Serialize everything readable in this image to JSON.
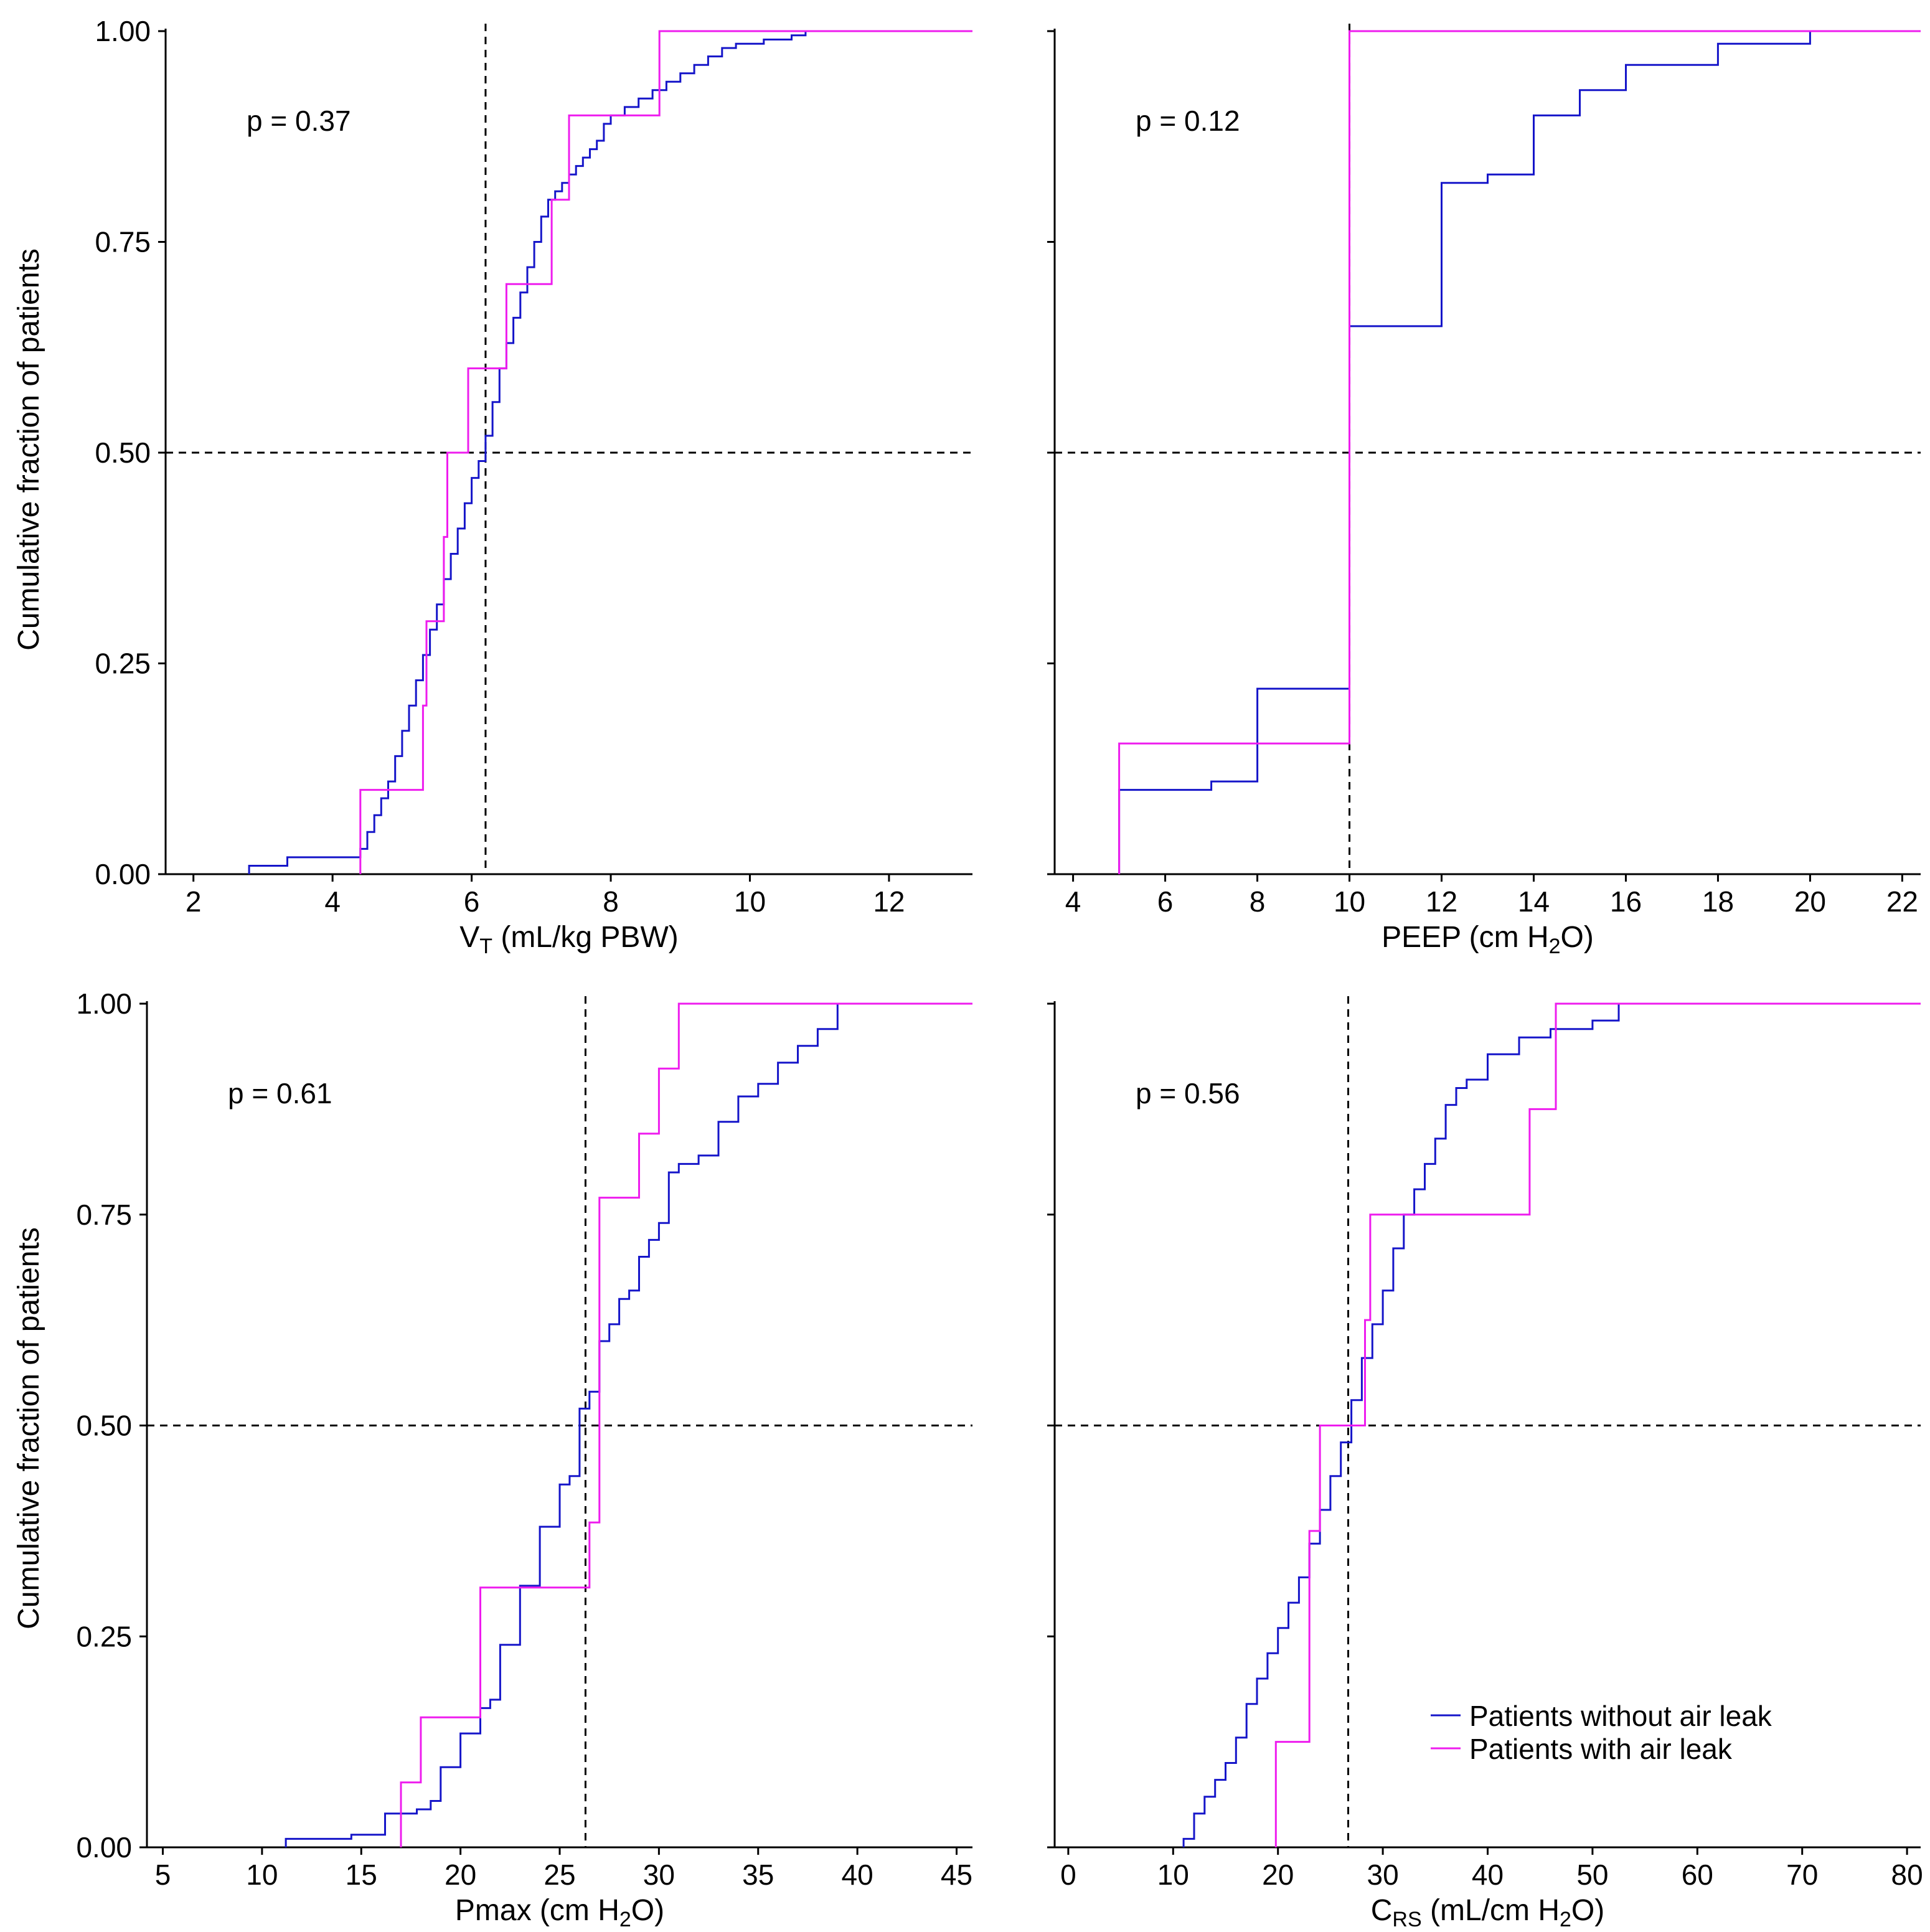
{
  "figure": {
    "legend": [
      {
        "name": "Patients without air leak",
        "color": "#1515c9"
      },
      {
        "name": "Patients with air leak",
        "color": "#ee1cee"
      }
    ],
    "ylabel": "Cumulative fraction of patients"
  },
  "chart_data": [
    {
      "type": "line",
      "step": true,
      "title": "",
      "xlabel_main": "V",
      "xlabel_sub": "T",
      "xlabel_rest": " (mL/kg PBW)",
      "ylabel": "Cumulative fraction of patients",
      "xlim": [
        1.6,
        13.2
      ],
      "ylim": [
        0,
        1
      ],
      "xticks": [
        2,
        4,
        6,
        8,
        10,
        12
      ],
      "yticks": [
        "0.00",
        "0.25",
        "0.50",
        "0.75",
        "1.00"
      ],
      "annotation": "p = 0.37",
      "ref_x": 6.2,
      "ref_y": 0.5,
      "series": [
        {
          "name": "Patients without air leak",
          "x": [
            2.8,
            3.35,
            4.4,
            4.5,
            4.6,
            4.7,
            4.8,
            4.9,
            5.0,
            5.1,
            5.2,
            5.3,
            5.4,
            5.5,
            5.6,
            5.7,
            5.8,
            5.9,
            6.0,
            6.1,
            6.2,
            6.3,
            6.4,
            6.5,
            6.6,
            6.7,
            6.8,
            6.9,
            7.0,
            7.1,
            7.2,
            7.3,
            7.4,
            7.5,
            7.6,
            7.7,
            7.8,
            7.9,
            8.0,
            8.2,
            8.4,
            8.6,
            8.8,
            9.0,
            9.2,
            9.4,
            9.6,
            9.8,
            10.2,
            10.6,
            10.8
          ],
          "y": [
            0.01,
            0.02,
            0.03,
            0.05,
            0.07,
            0.09,
            0.11,
            0.14,
            0.17,
            0.2,
            0.23,
            0.26,
            0.29,
            0.32,
            0.35,
            0.38,
            0.41,
            0.44,
            0.47,
            0.49,
            0.52,
            0.56,
            0.6,
            0.63,
            0.66,
            0.69,
            0.72,
            0.75,
            0.78,
            0.8,
            0.81,
            0.82,
            0.83,
            0.84,
            0.85,
            0.86,
            0.87,
            0.89,
            0.9,
            0.91,
            0.92,
            0.93,
            0.94,
            0.95,
            0.96,
            0.97,
            0.98,
            0.985,
            0.99,
            0.995,
            1.0
          ]
        },
        {
          "name": "Patients with air leak",
          "x": [
            4.4,
            5.3,
            5.35,
            5.6,
            5.65,
            5.95,
            6.5,
            7.15,
            7.4,
            7.8,
            8.7
          ],
          "y": [
            0.1,
            0.2,
            0.3,
            0.4,
            0.5,
            0.6,
            0.7,
            0.8,
            0.9,
            0.9,
            1.0
          ]
        }
      ]
    },
    {
      "type": "line",
      "step": true,
      "title": "",
      "xlabel_main": "PEEP (cm H",
      "xlabel_sub": "2",
      "xlabel_rest": "O)",
      "ylabel": "",
      "xlim": [
        3.6,
        22.4
      ],
      "ylim": [
        0,
        1
      ],
      "xticks": [
        4,
        6,
        8,
        10,
        12,
        14,
        16,
        18,
        20,
        22
      ],
      "yticks": [],
      "annotation": "p = 0.12",
      "ref_x": 10,
      "ref_y": 0.5,
      "series": [
        {
          "name": "Patients without air leak",
          "x": [
            5,
            7,
            8,
            10,
            12,
            13,
            14,
            15,
            16,
            18,
            20
          ],
          "y": [
            0.1,
            0.11,
            0.22,
            0.65,
            0.82,
            0.83,
            0.9,
            0.93,
            0.96,
            0.985,
            1.0
          ]
        },
        {
          "name": "Patients with air leak",
          "x": [
            5,
            10
          ],
          "y": [
            0.155,
            1.0
          ]
        }
      ]
    },
    {
      "type": "line",
      "step": true,
      "title": "",
      "xlabel_main": "Pmax (cm H",
      "xlabel_sub": "2",
      "xlabel_rest": "O)",
      "ylabel": "Cumulative fraction of patients",
      "xlim": [
        4.2,
        45.8
      ],
      "ylim": [
        0,
        1
      ],
      "xticks": [
        5,
        10,
        15,
        20,
        25,
        30,
        35,
        40,
        45
      ],
      "yticks": [
        "0.00",
        "0.25",
        "0.50",
        "0.75",
        "1.00"
      ],
      "annotation": "p = 0.61",
      "ref_x": 26.3,
      "ref_y": 0.5,
      "series": [
        {
          "name": "Patients without air leak",
          "x": [
            11.2,
            14.5,
            16.2,
            17.8,
            18.5,
            19.0,
            20.0,
            21.0,
            21.5,
            22.0,
            23.0,
            24.0,
            25.0,
            25.5,
            26.0,
            26.5,
            27.0,
            27.5,
            28.0,
            28.5,
            29.0,
            29.5,
            30.0,
            30.5,
            31.0,
            32.0,
            33.0,
            34.0,
            35.0,
            36.0,
            37.0,
            38.0,
            39.0
          ],
          "y": [
            0.01,
            0.015,
            0.04,
            0.045,
            0.055,
            0.095,
            0.135,
            0.165,
            0.175,
            0.24,
            0.31,
            0.38,
            0.43,
            0.44,
            0.52,
            0.54,
            0.6,
            0.62,
            0.65,
            0.66,
            0.7,
            0.72,
            0.74,
            0.8,
            0.81,
            0.82,
            0.86,
            0.89,
            0.905,
            0.93,
            0.95,
            0.97,
            1.0
          ]
        },
        {
          "name": "Patients with air leak",
          "x": [
            17.0,
            18.0,
            21.0,
            26.5,
            27.0,
            29.0,
            30.0,
            31.0
          ],
          "y": [
            0.077,
            0.154,
            0.308,
            0.385,
            0.77,
            0.846,
            0.923,
            1.0
          ]
        }
      ]
    },
    {
      "type": "line",
      "step": true,
      "title": "",
      "xlabel_main": "C",
      "xlabel_sub": "RS",
      "xlabel_rest": " (mL/cm H2O)",
      "ylabel": "",
      "xlim": [
        -1.3,
        81.3
      ],
      "ylim": [
        0,
        1
      ],
      "xticks": [
        0,
        10,
        20,
        30,
        40,
        50,
        60,
        70,
        80
      ],
      "yticks": [],
      "annotation": "p = 0.56",
      "ref_x": 26.7,
      "ref_y": 0.5,
      "series": [
        {
          "name": "Patients without air leak",
          "x": [
            11,
            12,
            13,
            14,
            15,
            16,
            17,
            18,
            19,
            20,
            21,
            22,
            23,
            24,
            25,
            26,
            27,
            28,
            29,
            30,
            31,
            32,
            33,
            34,
            35,
            36,
            37,
            38,
            40,
            43,
            46,
            50,
            52.5
          ],
          "y": [
            0.01,
            0.04,
            0.06,
            0.08,
            0.1,
            0.13,
            0.17,
            0.2,
            0.23,
            0.26,
            0.29,
            0.32,
            0.36,
            0.4,
            0.44,
            0.48,
            0.53,
            0.58,
            0.62,
            0.66,
            0.71,
            0.75,
            0.78,
            0.81,
            0.84,
            0.88,
            0.9,
            0.91,
            0.94,
            0.96,
            0.97,
            0.98,
            1.0
          ]
        },
        {
          "name": "Patients with air leak",
          "x": [
            19.8,
            23.0,
            24.0,
            28.3,
            28.8,
            44.0,
            46.5
          ],
          "y": [
            0.125,
            0.375,
            0.5,
            0.625,
            0.75,
            0.875,
            1.0
          ]
        }
      ]
    }
  ]
}
